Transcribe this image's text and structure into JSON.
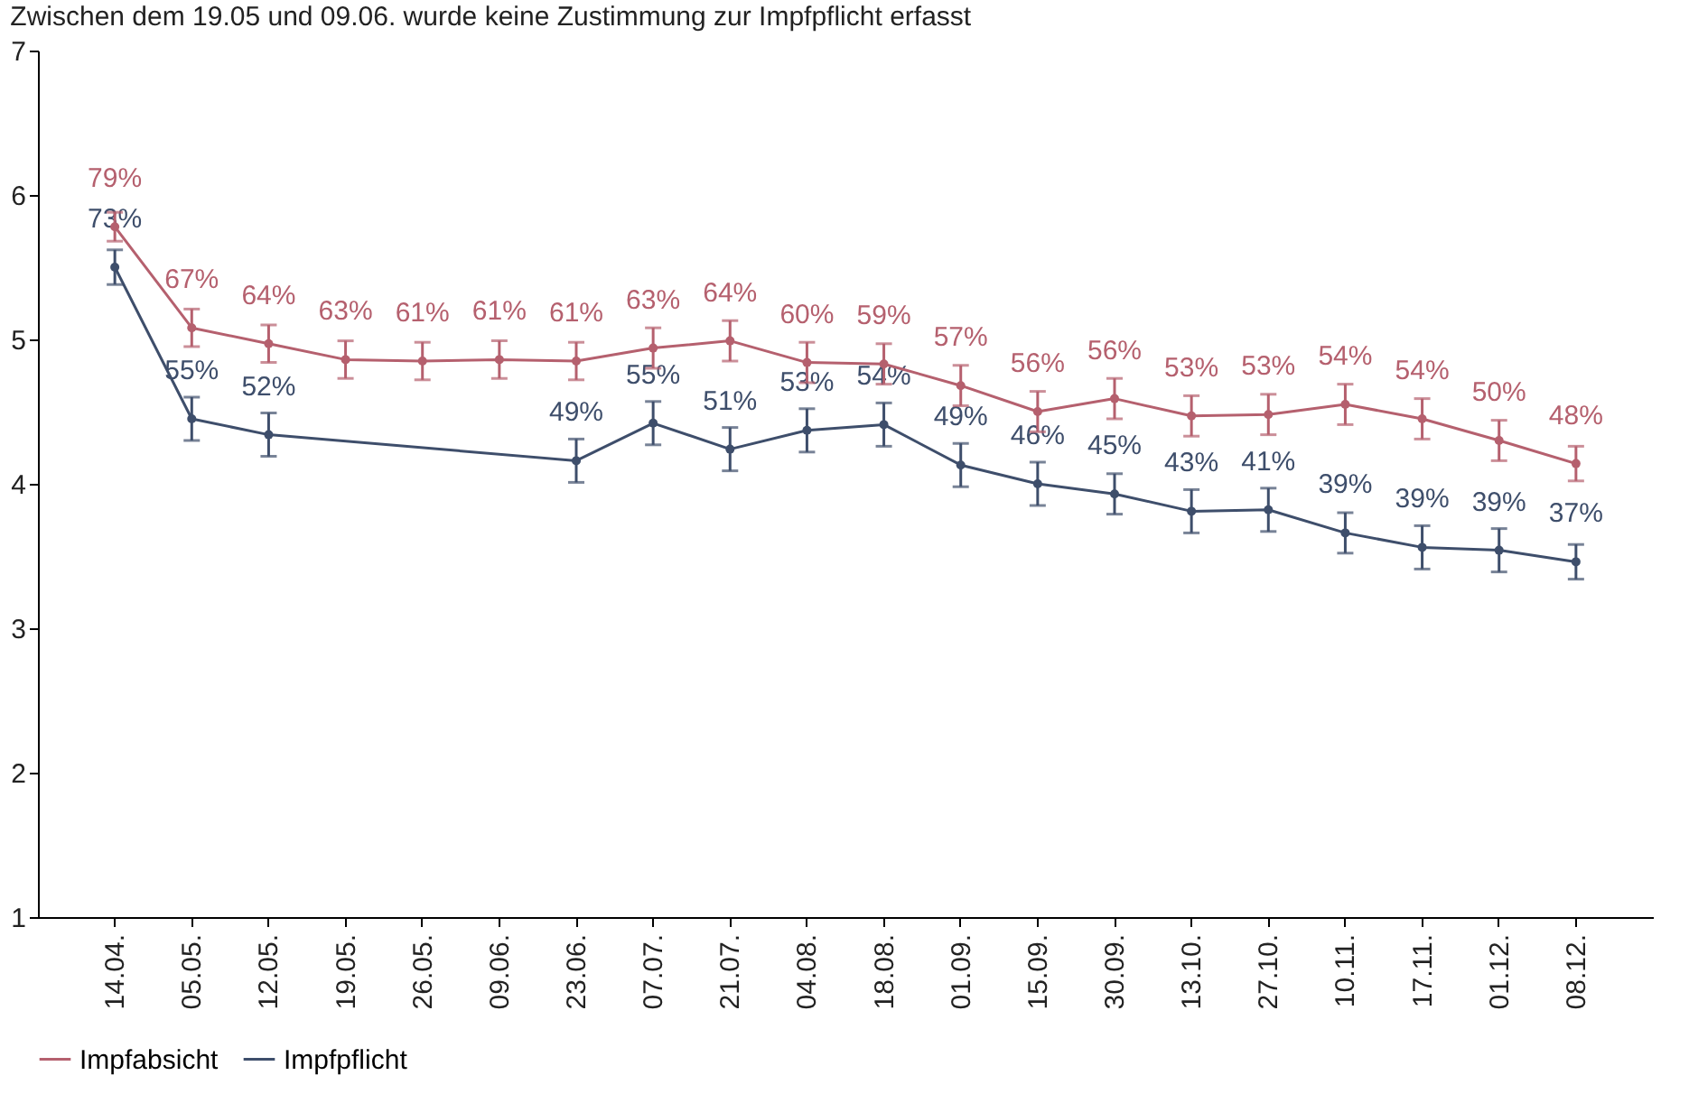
{
  "chart_data": {
    "type": "line",
    "title": "Zwischen dem 19.05 und 09.06. wurde keine Zustimmung zur Impfpflicht erfasst",
    "categories": [
      "14.04.",
      "05.05.",
      "12.05.",
      "19.05.",
      "26.05.",
      "09.06.",
      "23.06.",
      "07.07.",
      "21.07.",
      "04.08.",
      "18.08.",
      "01.09.",
      "15.09.",
      "30.09.",
      "13.10.",
      "27.10.",
      "10.11.",
      "17.11.",
      "01.12.",
      "08.12."
    ],
    "series": [
      {
        "name": "Impfabsicht",
        "color": "#b5606e",
        "values": [
          5.78,
          5.08,
          4.97,
          4.86,
          4.85,
          4.86,
          4.85,
          4.94,
          4.99,
          4.84,
          4.83,
          4.68,
          4.5,
          4.59,
          4.47,
          4.48,
          4.55,
          4.45,
          4.3,
          4.14
        ],
        "errors": [
          0.1,
          0.13,
          0.13,
          0.13,
          0.13,
          0.13,
          0.13,
          0.14,
          0.14,
          0.14,
          0.14,
          0.14,
          0.14,
          0.14,
          0.14,
          0.14,
          0.14,
          0.14,
          0.14,
          0.12
        ]
      },
      {
        "name": "Impfpflicht",
        "color": "#3e4e6b",
        "values": [
          5.5,
          4.45,
          4.34,
          null,
          null,
          null,
          4.16,
          4.42,
          4.24,
          4.37,
          4.41,
          4.13,
          4.0,
          3.93,
          3.81,
          3.82,
          3.66,
          3.56,
          3.54,
          3.46
        ],
        "errors": [
          0.12,
          0.15,
          0.15,
          null,
          null,
          null,
          0.15,
          0.15,
          0.15,
          0.15,
          0.15,
          0.15,
          0.15,
          0.14,
          0.15,
          0.15,
          0.14,
          0.15,
          0.15,
          0.12
        ]
      }
    ],
    "annotations": [
      {
        "text": "79%",
        "x": "14.04.",
        "y": 5.78
      },
      {
        "text": "67%",
        "x": "05.05.",
        "y": 5.08
      },
      {
        "text": "64%",
        "x": "12.05.",
        "y": 4.97
      },
      {
        "text": "63%",
        "x": "19.05.",
        "y": 4.86
      },
      {
        "text": "61%",
        "x": "26.05.",
        "y": 4.85
      },
      {
        "text": "61%",
        "x": "09.06.",
        "y": 4.86
      },
      {
        "text": "61%",
        "x": "23.06.",
        "y": 4.85
      },
      {
        "text": "63%",
        "x": "07.07.",
        "y": 4.94
      },
      {
        "text": "64%",
        "x": "21.07.",
        "y": 4.99
      },
      {
        "text": "60%",
        "x": "04.08.",
        "y": 4.84
      },
      {
        "text": "59%",
        "x": "18.08.",
        "y": 4.83
      },
      {
        "text": "57%",
        "x": "01.09.",
        "y": 4.68
      },
      {
        "text": "56%",
        "x": "15.09.",
        "y": 4.5
      },
      {
        "text": "56%",
        "x": "30.09.",
        "y": 4.59
      },
      {
        "text": "53%",
        "x": "13.10.",
        "y": 4.47
      },
      {
        "text": "53%",
        "x": "27.10.",
        "y": 4.48
      },
      {
        "text": "54%",
        "x": "10.11.",
        "y": 4.55
      },
      {
        "text": "54%",
        "x": "17.11.",
        "y": 4.45
      },
      {
        "text": "50%",
        "x": "01.12.",
        "y": 4.3
      },
      {
        "text": "48%",
        "x": "08.12.",
        "y": 4.14
      },
      {
        "text": "73%",
        "x": "14.04.",
        "y": 5.5
      },
      {
        "text": "55%",
        "x": "05.05.",
        "y": 4.45
      },
      {
        "text": "52%",
        "x": "12.05.",
        "y": 4.34
      },
      {
        "text": "49%",
        "x": "23.06.",
        "y": 4.16
      },
      {
        "text": "55%",
        "x": "07.07.",
        "y": 4.42
      },
      {
        "text": "51%",
        "x": "21.07.",
        "y": 4.24
      },
      {
        "text": "53%",
        "x": "04.08.",
        "y": 4.37
      },
      {
        "text": "54%",
        "x": "18.08.",
        "y": 4.41
      },
      {
        "text": "49%",
        "x": "01.09.",
        "y": 4.13
      },
      {
        "text": "46%",
        "x": "15.09.",
        "y": 4.0
      },
      {
        "text": "45%",
        "x": "30.09.",
        "y": 3.93
      },
      {
        "text": "43%",
        "x": "13.10.",
        "y": 3.81
      },
      {
        "text": "41%",
        "x": "27.10.",
        "y": 3.82
      },
      {
        "text": "39%",
        "x": "10.11.",
        "y": 3.66
      },
      {
        "text": "39%",
        "x": "17.11.",
        "y": 3.56
      },
      {
        "text": "39%",
        "x": "01.12.",
        "y": 3.54
      },
      {
        "text": "37%",
        "x": "08.12.",
        "y": 3.46
      }
    ],
    "ylim": [
      1,
      7
    ],
    "yticks": [
      1,
      2,
      3,
      4,
      5,
      6,
      7
    ],
    "grid": false,
    "legend": "bottom",
    "marker": "circle",
    "line_style": "solid"
  }
}
